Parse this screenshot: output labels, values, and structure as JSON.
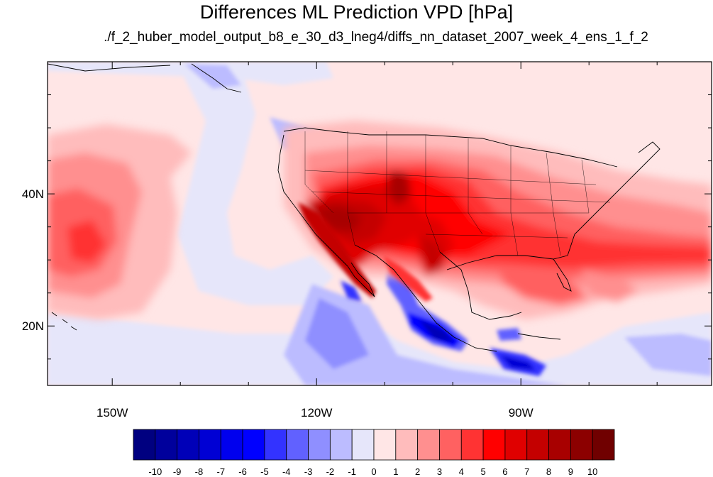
{
  "title": "Differences ML Prediction VPD [hPa]",
  "subtitle": "./f_2_huber_model_output_b8_e_30_d3_lneg4/diffs_nn_dataset_2007_week_4_ens_1_f_2",
  "map": {
    "lon_range": [
      -159.5,
      -62
    ],
    "lat_range": [
      11,
      60
    ],
    "lon_ticks": [
      {
        "value": -150,
        "label": "150W"
      },
      {
        "value": -120,
        "label": "120W"
      },
      {
        "value": -90,
        "label": "90W"
      }
    ],
    "lat_ticks": [
      {
        "value": 40,
        "label": "40N"
      },
      {
        "value": 20,
        "label": "20N"
      }
    ]
  },
  "colorbar": {
    "levels": [
      "-10",
      "-9",
      "-8",
      "-7",
      "-6",
      "-5",
      "-4",
      "-3",
      "-2",
      "-1",
      "0",
      "1",
      "2",
      "3",
      "4",
      "5",
      "6",
      "7",
      "8",
      "9",
      "10"
    ],
    "colors": [
      "#000080",
      "#00009c",
      "#0000b8",
      "#0000d4",
      "#0000ee",
      "#0000ff",
      "#3333ff",
      "#6161ff",
      "#8f8fff",
      "#bcbcff",
      "#e6e6fa",
      "#ffe6e6",
      "#ffbcbc",
      "#ff8f8f",
      "#ff6161",
      "#ff3333",
      "#ff0000",
      "#e00000",
      "#c40000",
      "#a80000",
      "#8c0000",
      "#700000"
    ]
  }
}
